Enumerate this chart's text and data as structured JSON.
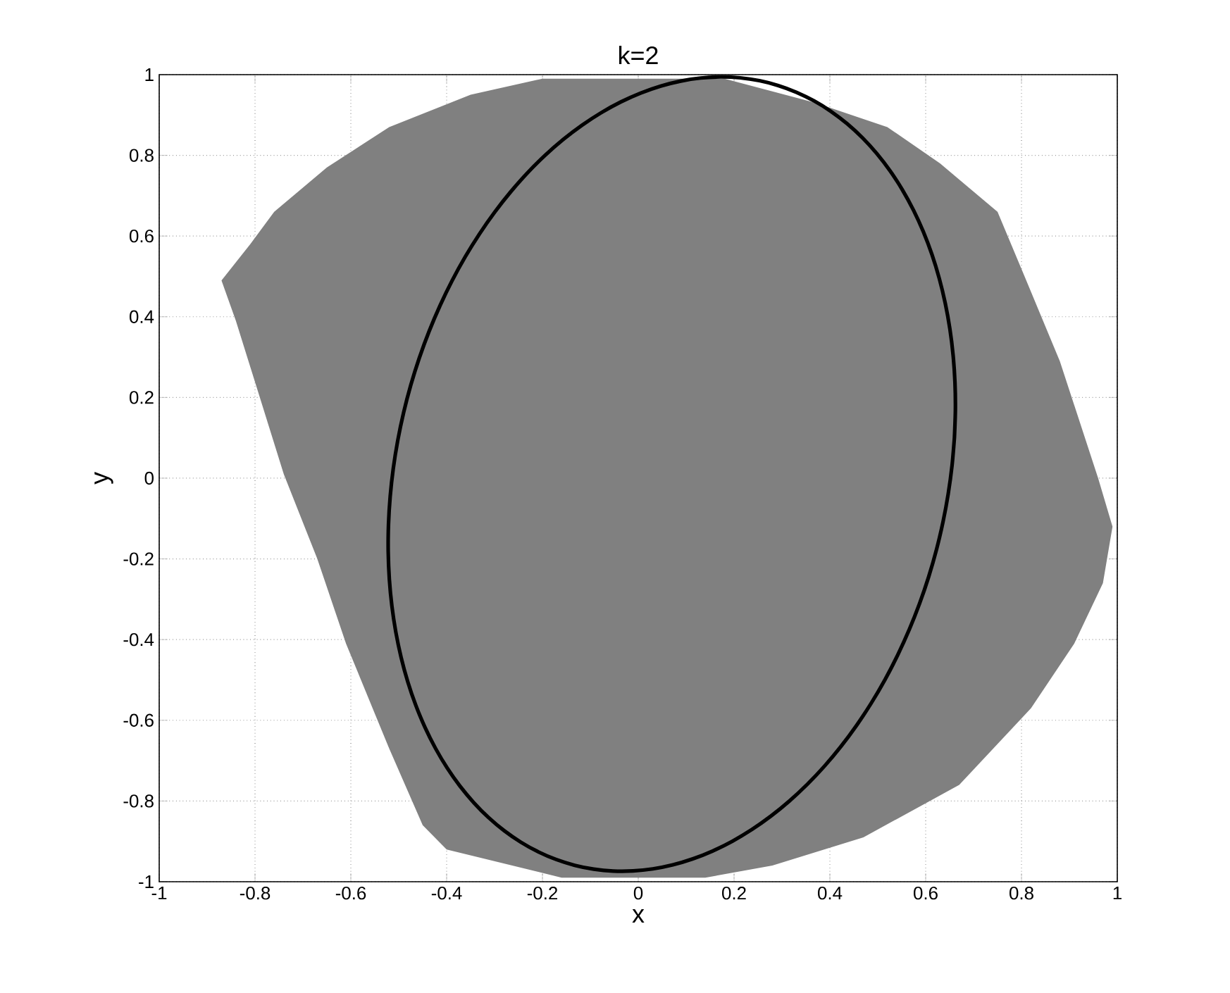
{
  "chart_data": {
    "type": "area",
    "title": "k=2",
    "xlabel": "x",
    "ylabel": "y",
    "xlim": [
      -1,
      1
    ],
    "ylim": [
      -1,
      1
    ],
    "xticks": [
      -1,
      -0.8,
      -0.6,
      -0.4,
      -0.2,
      0,
      0.2,
      0.4,
      0.6,
      0.8,
      1
    ],
    "yticks": [
      -1,
      -0.8,
      -0.6,
      -0.4,
      -0.2,
      0,
      0.2,
      0.4,
      0.6,
      0.8,
      1
    ],
    "grid": true,
    "series": [
      {
        "color": "#808080",
        "x": [
          -0.87,
          -0.81,
          -0.76,
          -0.65,
          -0.52,
          -0.35,
          -0.2,
          0.18,
          0.37,
          0.52,
          0.63,
          0.75,
          0.81,
          0.88,
          0.96,
          0.99,
          0.97,
          0.91,
          0.82,
          0.67,
          0.47,
          0.28,
          0.14,
          -0.16,
          -0.4,
          -0.45,
          -0.52,
          -0.61,
          -0.67,
          -0.74,
          -0.79,
          -0.84
        ],
        "values": [
          0.49,
          0.58,
          0.66,
          0.77,
          0.87,
          0.95,
          0.99,
          0.99,
          0.93,
          0.87,
          0.78,
          0.66,
          0.49,
          0.29,
          0.0,
          -0.12,
          -0.26,
          -0.41,
          -0.57,
          -0.76,
          -0.89,
          -0.96,
          -0.99,
          -0.99,
          -0.92,
          -0.86,
          -0.67,
          -0.41,
          -0.2,
          0.01,
          0.2,
          0.39
        ]
      }
    ]
  }
}
